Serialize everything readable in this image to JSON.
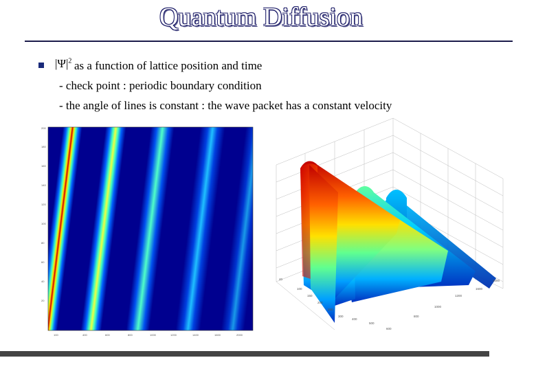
{
  "slide": {
    "title": "Quantum Diffusion",
    "psi_symbol": "|Ψ|",
    "psi_exponent": "2",
    "bullet_line1": "as a function of lattice position and time",
    "bullet_line2": "- check point : periodic boundary condition",
    "bullet_line3": "- the angle of lines is constant : the wave packet has a constant velocity"
  },
  "colors": {
    "title_outline": "#1a1a66",
    "rule": "#1a1a4a",
    "heatmap_background": "#00008f",
    "bottom_bar": "#444444"
  },
  "figures": {
    "left_plot": "2D heatmap of |Ψ|^2 vs lattice position and time (jet colormap, diagonal stripes)",
    "right_plot": "3D surface of |Ψ|^2 vs lattice position and time (jet colormap)"
  }
}
